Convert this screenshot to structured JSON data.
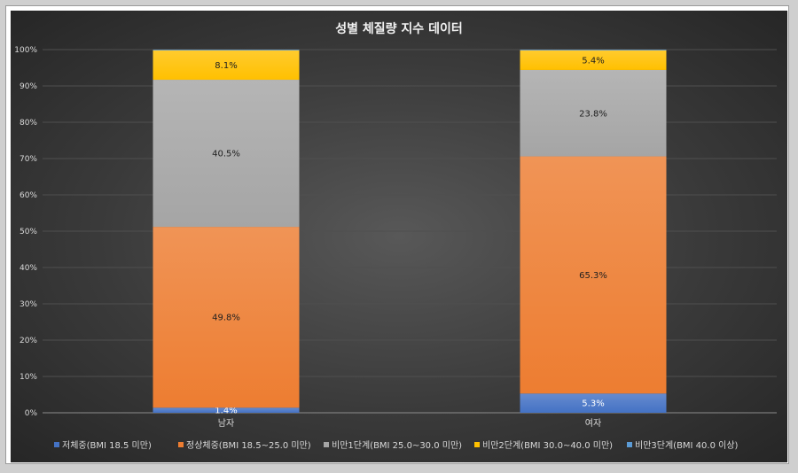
{
  "chart_data": {
    "type": "bar",
    "stacked": true,
    "percent": true,
    "title": "성별 체질량 지수 데이터",
    "categories": [
      "남자",
      "여자"
    ],
    "ylim": [
      0,
      100
    ],
    "yticks": [
      "0%",
      "10%",
      "20%",
      "30%",
      "40%",
      "50%",
      "60%",
      "70%",
      "80%",
      "90%",
      "100%"
    ],
    "grid": true,
    "legend_position": "bottom",
    "series": [
      {
        "name": "저체중(BMI 18.5 미만)",
        "values": [
          1.4,
          5.3
        ],
        "labels": [
          "1.4%",
          "5.3%"
        ],
        "color": "#4472C4"
      },
      {
        "name": "정상체중(BMI 18.5~25.0 미만)",
        "values": [
          49.8,
          65.3
        ],
        "labels": [
          "49.8%",
          "65.3%"
        ],
        "color": "#ED7D31"
      },
      {
        "name": "비만1단계(BMI 25.0~30.0 미만)",
        "values": [
          40.5,
          23.8
        ],
        "labels": [
          "40.5%",
          "23.8%"
        ],
        "color": "#A5A5A5"
      },
      {
        "name": "비만2단계(BMI 30.0~40.0 미만)",
        "values": [
          8.1,
          5.4
        ],
        "labels": [
          "8.1%",
          "5.4%"
        ],
        "color": "#FFC000"
      },
      {
        "name": "비만3단계(BMI 40.0 이상)",
        "values": [
          0.2,
          0.2
        ],
        "labels": [
          "",
          ""
        ],
        "color": "#5B9BD5"
      }
    ]
  }
}
